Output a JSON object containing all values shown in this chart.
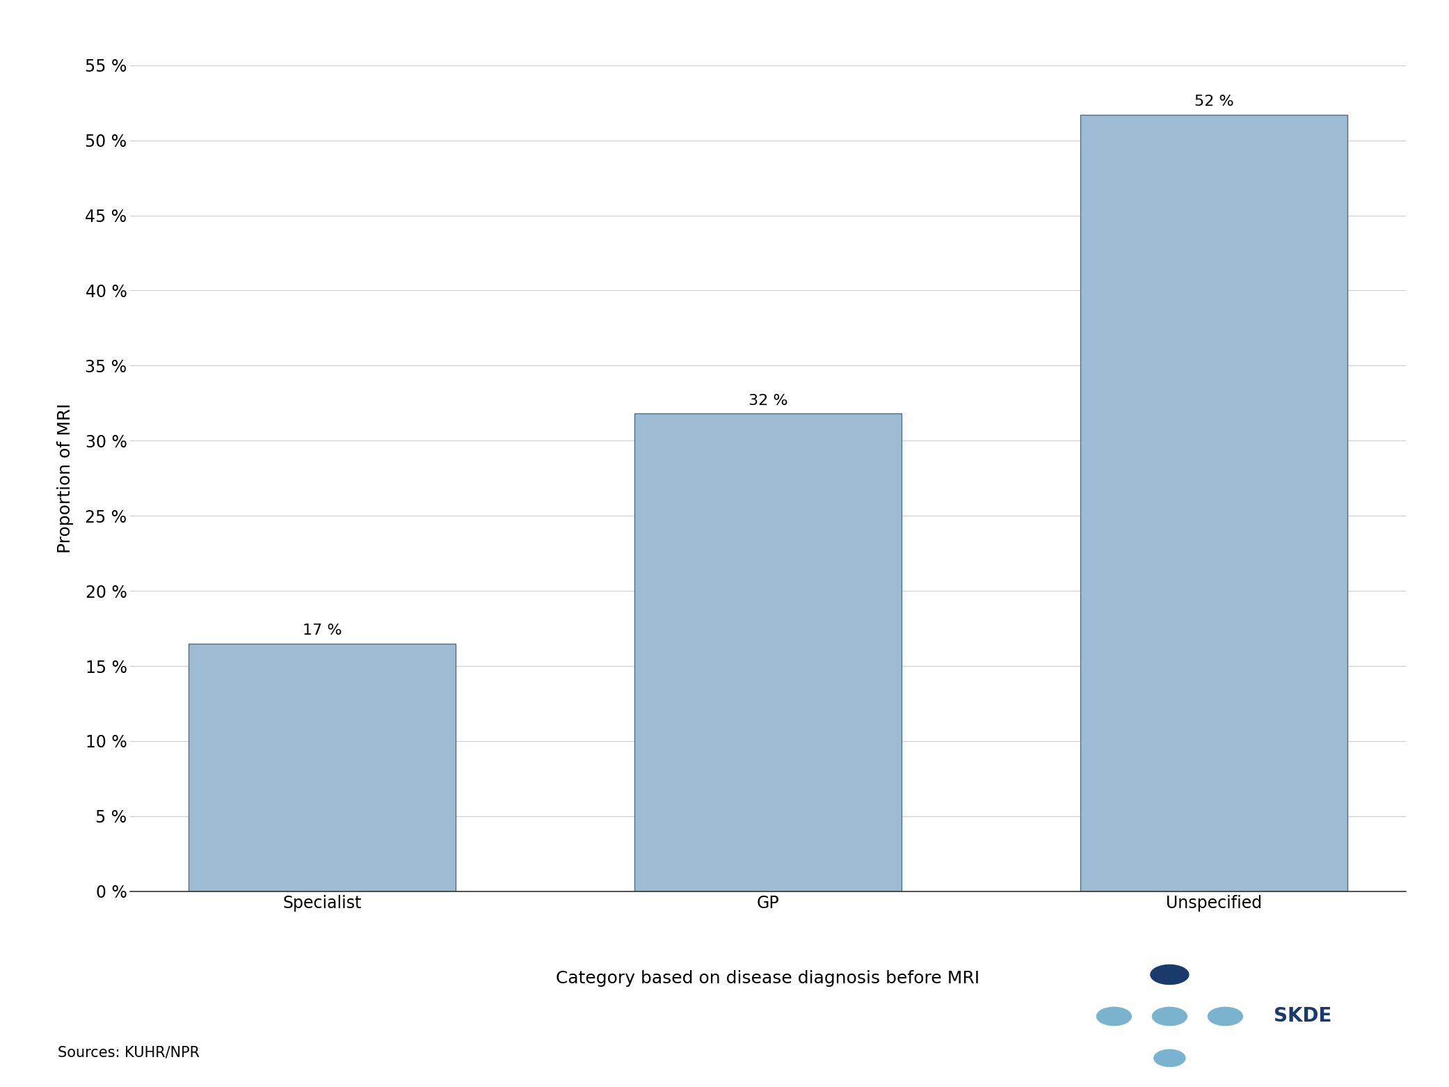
{
  "categories": [
    "Specialist",
    "GP",
    "Unspecified"
  ],
  "values": [
    16.5,
    31.8,
    51.7
  ],
  "labels": [
    "17 %",
    "32 %",
    "52 %"
  ],
  "bar_color": "#9dbcd4",
  "bar_edgecolor": "#4a6f8a",
  "ylabel": "Proportion of MRI",
  "xlabel": "Category based on disease diagnosis before MRI",
  "source_text": "Sources: KUHR/NPR",
  "ylim": [
    0,
    55
  ],
  "yticks": [
    0,
    5,
    10,
    15,
    20,
    25,
    30,
    35,
    40,
    45,
    50,
    55
  ],
  "ytick_labels": [
    "0 %",
    "5 %",
    "10 %",
    "15 %",
    "20 %",
    "25 %",
    "30 %",
    "35 %",
    "40 %",
    "45 %",
    "50 %",
    "55 %"
  ],
  "label_fontsize": 18,
  "tick_fontsize": 17,
  "bar_label_fontsize": 16,
  "source_fontsize": 15,
  "skde_text": "SKDE",
  "skde_text_color": "#1a3a6b",
  "dot_dark": "#1a3a6b",
  "dot_light": "#7ab3d0",
  "background_color": "#ffffff"
}
